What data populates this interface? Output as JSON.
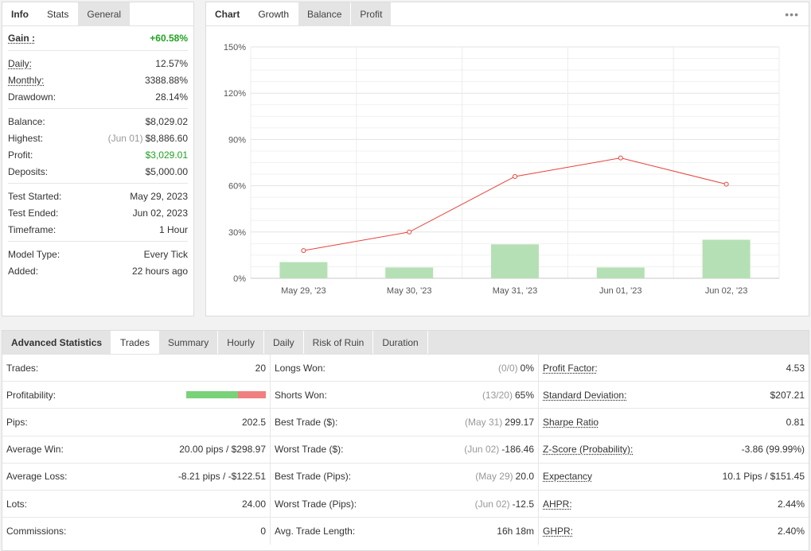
{
  "info": {
    "tabs": [
      "Info",
      "Stats",
      "General"
    ],
    "gain": {
      "label": "Gain :",
      "value": "+60.58%"
    },
    "group1": [
      {
        "label": "Daily:",
        "value": "12.57%"
      },
      {
        "label": "Monthly:",
        "value": "3388.88%"
      },
      {
        "label": "Drawdown:",
        "value": "28.14%"
      }
    ],
    "group2": [
      {
        "label": "Balance:",
        "value": "$8,029.02"
      },
      {
        "label": "Highest:",
        "note": "(Jun 01)",
        "value": "$8,886.60"
      },
      {
        "label": "Profit:",
        "value": "$3,029.01"
      },
      {
        "label": "Deposits:",
        "value": "$5,000.00"
      }
    ],
    "group3": [
      {
        "label": "Test Started:",
        "value": "May 29, 2023"
      },
      {
        "label": "Test Ended:",
        "value": "Jun 02, 2023"
      },
      {
        "label": "Timeframe:",
        "value": "1 Hour"
      }
    ],
    "group4": [
      {
        "label": "Model Type:",
        "value": "Every Tick"
      },
      {
        "label": "Added:",
        "value": "22 hours ago"
      }
    ]
  },
  "chart_panel": {
    "tabs": [
      "Chart",
      "Growth",
      "Balance",
      "Profit"
    ],
    "more_icon": "ellipsis-icon"
  },
  "chart_data": {
    "type": "bar",
    "categories": [
      "May 29, '23",
      "May 30, '23",
      "May 31, '23",
      "Jun 01, '23",
      "Jun 02, '23"
    ],
    "y_ticks": [
      "0%",
      "30%",
      "60%",
      "90%",
      "120%",
      "150%"
    ],
    "ylim": [
      0,
      150
    ],
    "series": [
      {
        "type": "bar",
        "values": [
          10.5,
          7,
          22,
          7,
          25
        ],
        "color": "#b5e0b5"
      },
      {
        "type": "line",
        "values": [
          18,
          30,
          66,
          78,
          61
        ],
        "color": "#e8433a"
      }
    ],
    "grid": true
  },
  "advanced": {
    "tabs": [
      "Advanced Statistics",
      "Trades",
      "Summary",
      "Hourly",
      "Daily",
      "Risk of Ruin",
      "Duration"
    ],
    "col1": [
      {
        "label": "Trades:",
        "value": "20"
      },
      {
        "label": "Profitability:",
        "bar": true
      },
      {
        "label": "Pips:",
        "value": "202.5"
      },
      {
        "label": "Average Win:",
        "value": "20.00 pips / $298.97"
      },
      {
        "label": "Average Loss:",
        "value": "-8.21 pips / -$122.51"
      },
      {
        "label": "Lots:",
        "value": "24.00"
      },
      {
        "label": "Commissions:",
        "value": "0"
      }
    ],
    "profitability": {
      "win_fraction": 0.65,
      "win_color": "#79d279",
      "loss_color": "#f08080"
    },
    "col2": [
      {
        "label": "Longs Won:",
        "note": "(0/0)",
        "value": "0%"
      },
      {
        "label": "Shorts Won:",
        "note": "(13/20)",
        "value": "65%"
      },
      {
        "label": "Best Trade ($):",
        "note": "(May 31)",
        "value": "299.17"
      },
      {
        "label": "Worst Trade ($):",
        "note": "(Jun 02)",
        "value": "-186.46"
      },
      {
        "label": "Best Trade (Pips):",
        "note": "(May 29)",
        "value": "20.0"
      },
      {
        "label": "Worst Trade (Pips):",
        "note": "(Jun 02)",
        "value": "-12.5"
      },
      {
        "label": "Avg. Trade Length:",
        "value": "16h 18m"
      }
    ],
    "col3": [
      {
        "label": "Profit Factor:",
        "value": "4.53"
      },
      {
        "label": "Standard Deviation:",
        "value": "$207.21"
      },
      {
        "label": "Sharpe Ratio",
        "value": "0.81"
      },
      {
        "label": "Z-Score (Probability):",
        "value": "-3.86 (99.99%)"
      },
      {
        "label": "Expectancy",
        "value": "10.1 Pips / $151.45"
      },
      {
        "label": "AHPR:",
        "value": "2.44%"
      },
      {
        "label": "GHPR:",
        "value": "2.40%"
      }
    ]
  }
}
